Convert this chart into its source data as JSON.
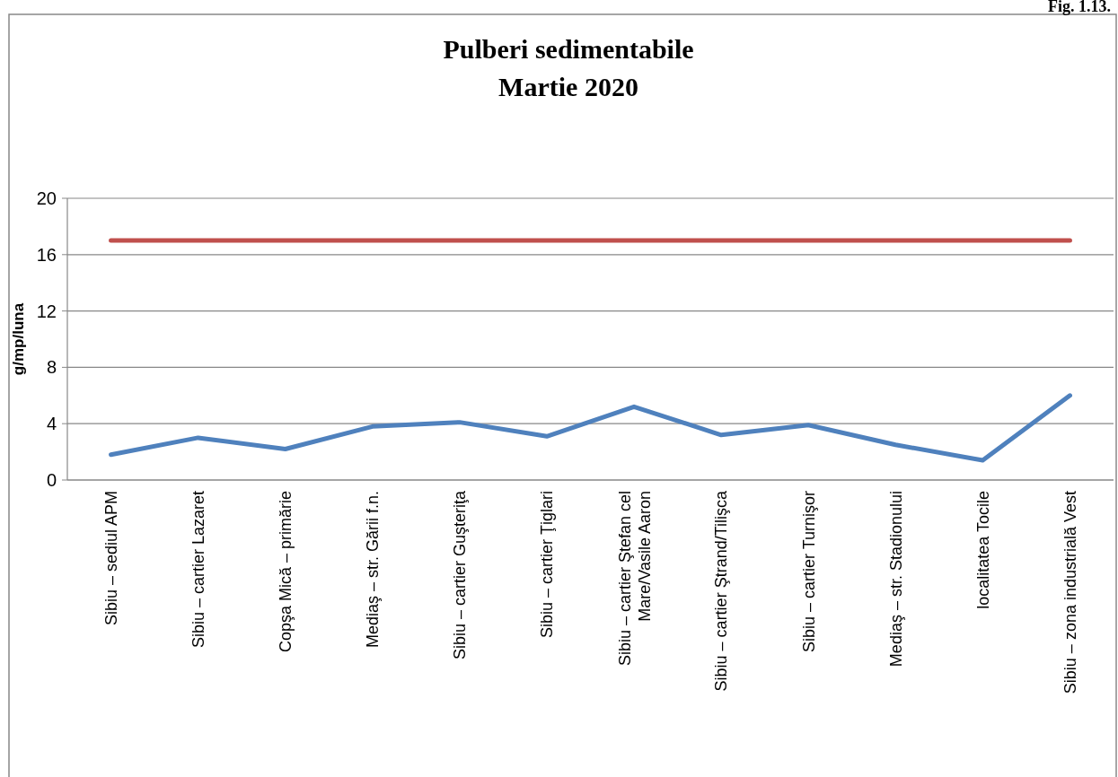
{
  "chart_data": {
    "type": "line",
    "title": "Pulberi sedimentabile\nMartie 2020",
    "ylabel": "g/mp/luna",
    "annotations": [
      "Fig. 1.13."
    ],
    "categories": [
      "Sibiu – sediul APM",
      "Sibiu – cartier Lazaret",
      "Copşa Mică – primărie",
      "Mediaş – str. Gării f.n.",
      "Sibiu – cartier Guşteriţa",
      "Sibiu – cartier Ţiglari",
      "Sibiu – cartier Ştefan cel Mare/Vasile Aaron",
      "Sibiu – cartier Ştrand/Tilişca",
      "Sibiu – cartier Turnişor",
      "Mediaş – str. Stadionului",
      "localitatea Tocile",
      "Sibiu – zona industrială Vest"
    ],
    "series": [
      {
        "color": "#4f81bd",
        "values": [
          1.8,
          3.0,
          2.2,
          3.8,
          4.1,
          3.1,
          5.2,
          3.2,
          3.9,
          2.5,
          1.4,
          6.0
        ]
      },
      {
        "color": "#c0504d",
        "values": [
          17,
          17,
          17,
          17,
          17,
          17,
          17,
          17,
          17,
          17,
          17,
          17
        ]
      }
    ],
    "ylim": [
      0,
      20
    ],
    "yticks": [
      0,
      4,
      8,
      12,
      16,
      20
    ],
    "grid": "y",
    "marker": "none",
    "line_style": "solid"
  }
}
